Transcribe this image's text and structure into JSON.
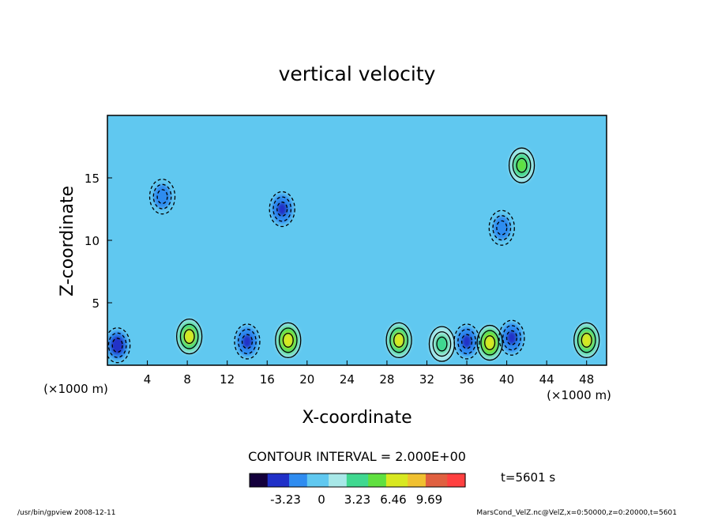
{
  "chart_data": {
    "type": "heatmap",
    "title": "vertical velocity",
    "xlabel": "X-coordinate",
    "ylabel": "Z-coordinate",
    "x_unit_left": "(×1000 m)",
    "x_unit_right": "(×1000 m)",
    "xlim": [
      0,
      50
    ],
    "ylim": [
      0,
      20
    ],
    "x_ticks": [
      4,
      8,
      12,
      16,
      20,
      24,
      28,
      32,
      36,
      40,
      44,
      48
    ],
    "y_ticks": [
      5,
      10,
      15
    ],
    "contour_interval": "CONTOUR INTERVAL = 2.000E+00",
    "colorbar_ticks": [
      "-3.23",
      "0",
      "3.23",
      "6.46",
      "9.69"
    ],
    "colorbar_range": [
      -6.46,
      12.92
    ],
    "time_label": "t=5601 s",
    "colormap": [
      "#14003c",
      "#2030c8",
      "#2f8cf0",
      "#60c8f0",
      "#a8e8e8",
      "#40d890",
      "#60e040",
      "#d8e820",
      "#f0c030",
      "#e06040",
      "#ff4040"
    ],
    "background_value": 0.0,
    "features": [
      {
        "kind": "updraft",
        "x": 8.2,
        "z": 2.3,
        "peak": 6.5
      },
      {
        "kind": "updraft",
        "x": 18.1,
        "z": 2.0,
        "peak": 7.0
      },
      {
        "kind": "updraft",
        "x": 29.2,
        "z": 2.0,
        "peak": 6.8
      },
      {
        "kind": "updraft",
        "x": 38.3,
        "z": 1.8,
        "peak": 7.2
      },
      {
        "kind": "updraft",
        "x": 48.0,
        "z": 2.0,
        "peak": 6.8
      },
      {
        "kind": "updraft",
        "x": 33.5,
        "z": 1.7,
        "peak": 3.5
      },
      {
        "kind": "updraft",
        "x": 41.5,
        "z": 16.0,
        "peak": 5.0
      },
      {
        "kind": "downdraft",
        "x": 1.0,
        "z": 1.6,
        "peak": -4.0
      },
      {
        "kind": "downdraft",
        "x": 14.0,
        "z": 1.9,
        "peak": -3.2
      },
      {
        "kind": "downdraft",
        "x": 36.0,
        "z": 1.9,
        "peak": -3.5
      },
      {
        "kind": "downdraft",
        "x": 40.5,
        "z": 2.2,
        "peak": -3.3
      },
      {
        "kind": "downdraft",
        "x": 17.5,
        "z": 12.5,
        "peak": -3.0
      },
      {
        "kind": "downdraft",
        "x": 39.5,
        "z": 11.0,
        "peak": -2.8
      },
      {
        "kind": "downdraft",
        "x": 5.5,
        "z": 13.5,
        "peak": -2.5
      }
    ]
  },
  "footer": {
    "left": "/usr/bin/gpview   2008-12-11",
    "right": "MarsCond_VelZ.nc@VelZ,x=0:50000,z=0:20000,t=5601"
  }
}
